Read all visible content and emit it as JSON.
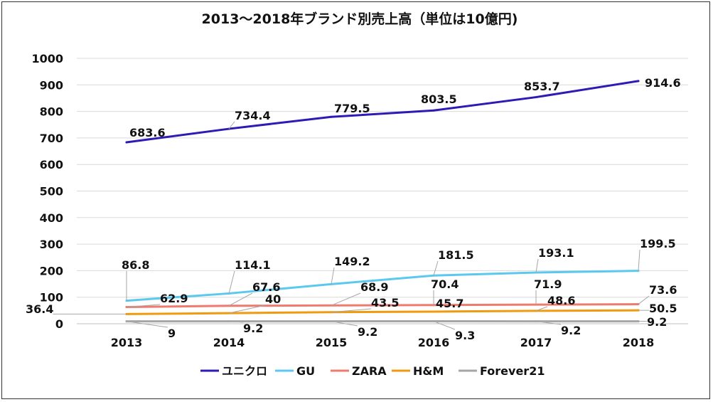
{
  "chart_data": {
    "type": "line",
    "title": "2013～2018年ブランド別売上高（単位は10億円)",
    "categories": [
      "2013",
      "2014",
      "2015",
      "2016",
      "2017",
      "2018"
    ],
    "ylim": [
      0,
      1000
    ],
    "yticks": [
      "0",
      "100",
      "200",
      "300",
      "400",
      "500",
      "600",
      "700",
      "800",
      "900",
      "1000"
    ],
    "grid": true,
    "legend_position": "bottom",
    "series": [
      {
        "name": "ユニクロ",
        "color": "#2E1BB5",
        "values": [
          683.6,
          734.4,
          779.5,
          803.5,
          853.7,
          914.6
        ],
        "labels": [
          "683.6",
          "734.4",
          "779.5",
          "803.5",
          "853.7",
          "914.6"
        ]
      },
      {
        "name": "GU",
        "color": "#5BC8EF",
        "values": [
          86.8,
          114.1,
          149.2,
          181.5,
          193.1,
          199.5
        ],
        "labels": [
          "86.8",
          "114.1",
          "149.2",
          "181.5",
          "193.1",
          "199.5"
        ]
      },
      {
        "name": "ZARA",
        "color": "#EF7A6E",
        "values": [
          62.9,
          67.6,
          68.9,
          70.4,
          71.9,
          73.6
        ],
        "labels": [
          "62.9",
          "67.6",
          "68.9",
          "70.4",
          "71.9",
          "73.6"
        ]
      },
      {
        "name": "H&M",
        "color": "#F09A0E",
        "values": [
          36.4,
          40,
          43.5,
          45.7,
          48.6,
          50.5
        ],
        "labels": [
          "36.4",
          "40",
          "43.5",
          "45.7",
          "48.6",
          "50.5"
        ]
      },
      {
        "name": "Forever21",
        "color": "#A6A6A6",
        "values": [
          9,
          9.2,
          9.2,
          9.3,
          9.2,
          9.2
        ],
        "labels": [
          "9",
          "9.2",
          "9.2",
          "9.3",
          "9.2",
          "9.2"
        ]
      }
    ]
  }
}
